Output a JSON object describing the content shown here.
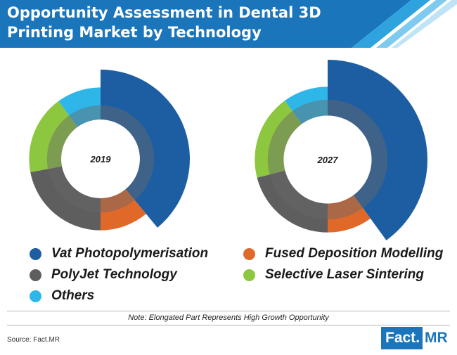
{
  "title": "Opportunity Assessment in Dental 3D Printing Market by Technology",
  "chart_data": [
    {
      "type": "pie",
      "label": "2019",
      "categories": [
        "Vat Photopolymerisation",
        "Fused Deposition Modelling",
        "PolyJet Technology",
        "Selective Laser Sintering",
        "Others"
      ],
      "values": [
        39,
        11,
        22,
        18,
        10
      ],
      "outer_scale": [
        1.0,
        0.8,
        0.8,
        0.8,
        0.8
      ]
    },
    {
      "type": "pie",
      "label": "2027",
      "categories": [
        "Vat Photopolymerisation",
        "Fused Deposition Modelling",
        "PolyJet Technology",
        "Selective Laser Sintering",
        "Others"
      ],
      "values": [
        40,
        10,
        21,
        19,
        10
      ],
      "outer_scale": [
        1.0,
        0.73,
        0.73,
        0.73,
        0.73
      ]
    }
  ],
  "colors": {
    "header": "#1b75bb",
    "Vat Photopolymerisation": "#1d5ea3",
    "Fused Deposition Modelling": "#e0692a",
    "PolyJet Technology": "#5e5e5e",
    "Selective Laser Sintering": "#8dc63f",
    "Others": "#2fb6e9",
    "inner_ring": "#686868"
  },
  "legend": [
    {
      "label": "Vat Photopolymerisation",
      "color": "#1d5ea3"
    },
    {
      "label": "Fused Deposition Modelling",
      "color": "#e0692a"
    },
    {
      "label": "PolyJet Technology",
      "color": "#5e5e5e"
    },
    {
      "label": "Selective Laser Sintering",
      "color": "#8dc63f"
    },
    {
      "label": "Others",
      "color": "#2fb6e9"
    }
  ],
  "note": "Note: Elongated Part Represents High Growth Opportunity",
  "source": "Source: Fact.MR",
  "logo": {
    "main": "Fact",
    "dot": ".",
    "suffix": "MR"
  }
}
